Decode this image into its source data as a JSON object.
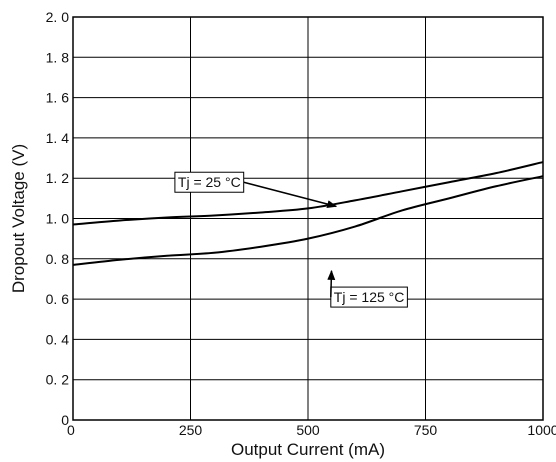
{
  "chart_data": {
    "type": "line",
    "xlabel": "Output Current (mA)",
    "ylabel": "Dropout Voltage (V)",
    "xlim": [
      0,
      1000
    ],
    "ylim": [
      0,
      2.0
    ],
    "x_ticks": [
      0,
      250,
      500,
      750,
      1000
    ],
    "x_tick_labels": [
      "0",
      "250",
      "500",
      "750",
      "1000"
    ],
    "y_ticks": [
      0,
      0.2,
      0.4,
      0.6,
      0.8,
      1.0,
      1.2,
      1.4,
      1.6,
      1.8,
      2.0
    ],
    "y_tick_labels": [
      "0",
      "0. 2",
      "0. 4",
      "0. 6",
      "0. 8",
      "1. 0",
      "1. 2",
      "1. 4",
      "1. 6",
      "1. 8",
      "2. 0"
    ],
    "grid": true,
    "series": [
      {
        "name": "Tj = 25 °C",
        "x": [
          0,
          100,
          200,
          300,
          400,
          500,
          600,
          700,
          800,
          900,
          1000
        ],
        "y": [
          0.97,
          0.99,
          1.005,
          1.015,
          1.03,
          1.05,
          1.09,
          1.135,
          1.18,
          1.225,
          1.28
        ]
      },
      {
        "name": "Tj = 125 °C",
        "x": [
          0,
          100,
          200,
          300,
          400,
          500,
          600,
          700,
          800,
          900,
          1000
        ],
        "y": [
          0.77,
          0.795,
          0.815,
          0.83,
          0.86,
          0.9,
          0.96,
          1.04,
          1.1,
          1.16,
          1.21
        ]
      }
    ],
    "annotations": [
      {
        "text": "Tj = 25 °C",
        "series": 0,
        "arrow_to_x": 560,
        "arrow_to_y": 1.06,
        "label_x": 290,
        "label_y": 1.18
      },
      {
        "text": "Tj = 125 °C",
        "series": 1,
        "arrow_to_x": 550,
        "arrow_to_y": 0.74,
        "label_x": 630,
        "label_y": 0.61
      }
    ]
  }
}
